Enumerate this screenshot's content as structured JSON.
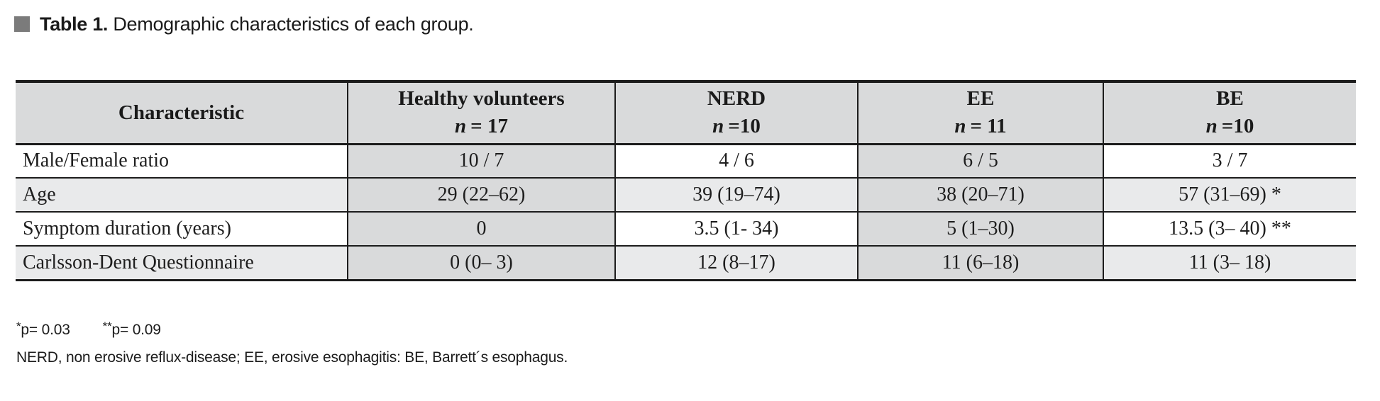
{
  "title": {
    "prefix": "Table 1.",
    "text": " Demographic characteristics of each group."
  },
  "colors": {
    "bullet_gray": "#7b7b7b",
    "shade_dark": "#d9dadb",
    "shade_light": "#e9eaeb",
    "border_black": "#1c1c1c"
  },
  "table": {
    "columns": [
      {
        "label": "Characteristic"
      },
      {
        "label": "Healthy volunteers",
        "n": "n",
        "count": "= 17"
      },
      {
        "label": "NERD",
        "n": "n",
        "count": "=10"
      },
      {
        "label": "EE",
        "n": "n",
        "count": "= 11"
      },
      {
        "label": "BE",
        "n": "n",
        "count": "=10"
      }
    ],
    "rows": [
      {
        "label": "Male/Female ratio",
        "values": [
          "10 / 7",
          "4 / 6",
          "6 / 5",
          "3 / 7"
        ]
      },
      {
        "label": "Age",
        "values": [
          "29 (22–62)",
          "39 (19–74)",
          "38 (20–71)",
          "57 (31–69) *"
        ]
      },
      {
        "label": "Symptom duration (years)",
        "values": [
          "0",
          "3.5 (1- 34)",
          "5 (1–30)",
          "13.5 (3– 40) **"
        ]
      },
      {
        "label": "Carlsson-Dent Questionnaire",
        "values": [
          "0 (0– 3)",
          "12 (8–17)",
          "11 (6–18)",
          "11 (3– 18)"
        ]
      }
    ]
  },
  "footnotes": {
    "p1_star": "*",
    "p1_text": "p= 0.03",
    "p2_star": "**",
    "p2_text": "p= 0.09",
    "abbreviations": "NERD, non erosive reflux-disease; EE, erosive esophagitis: BE, Barrett´s esophagus."
  }
}
